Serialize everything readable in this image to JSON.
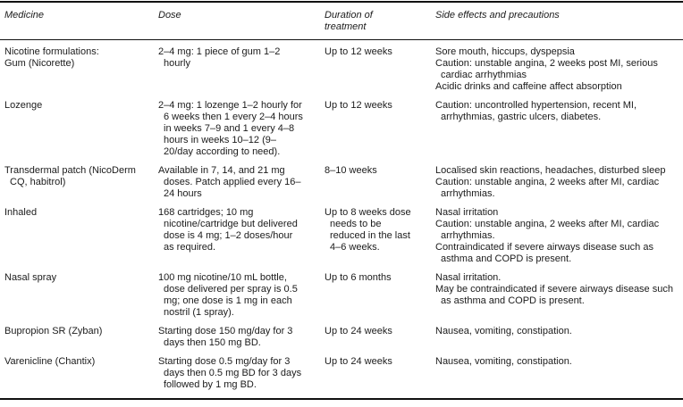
{
  "table": {
    "headers": [
      "Medicine",
      "Dose",
      "Duration of treatment",
      "Side effects and precautions"
    ],
    "rows": [
      {
        "medicine": [
          "Nicotine formulations:",
          "Gum (Nicorette)"
        ],
        "dose": [
          "2–4 mg: 1 piece of gum 1–2 hourly"
        ],
        "duration": [
          "Up to 12 weeks"
        ],
        "side_effects": [
          "Sore mouth, hiccups, dyspepsia",
          "Caution: unstable angina, 2 weeks post MI, serious cardiac arrhythmias",
          "Acidic drinks and caffeine affect absorption"
        ]
      },
      {
        "medicine": [
          "Lozenge"
        ],
        "dose": [
          "2–4 mg: 1 lozenge 1–2 hourly for 6 weeks then 1 every 2–4 hours in weeks 7–9 and 1 every 4–8 hours in weeks 10–12 (9–20/day according to need)."
        ],
        "duration": [
          "Up to 12 weeks"
        ],
        "side_effects": [
          "Caution: uncontrolled hypertension, recent MI, arrhythmias, gastric ulcers, diabetes."
        ]
      },
      {
        "medicine": [
          "Transdermal patch (NicoDerm CQ, habitrol)"
        ],
        "dose": [
          "Available in 7, 14, and 21 mg doses. Patch applied every 16–24 hours"
        ],
        "duration": [
          "8–10 weeks"
        ],
        "side_effects": [
          "Localised skin reactions, headaches, disturbed sleep",
          "Caution: unstable angina, 2 weeks after MI, cardiac arrhythmias."
        ]
      },
      {
        "medicine": [
          "Inhaled"
        ],
        "dose": [
          "168 cartridges; 10 mg nicotine/cartridge but delivered dose is 4 mg; 1–2 doses/hour as required."
        ],
        "duration": [
          "Up to 8 weeks dose needs to be reduced in the last 4–6 weeks."
        ],
        "side_effects": [
          "Nasal irritation",
          "Caution: unstable angina, 2 weeks after MI, cardiac arrhythmias.",
          "Contraindicated if severe airways disease such as asthma and COPD is present."
        ]
      },
      {
        "medicine": [
          "Nasal spray"
        ],
        "dose": [
          "100 mg nicotine/10 mL bottle, dose delivered per spray is 0.5 mg; one dose is 1 mg in each nostril (1 spray)."
        ],
        "duration": [
          "Up to 6 months"
        ],
        "side_effects": [
          "Nasal irritation.",
          "May be contraindicated if severe airways disease such as asthma and COPD is present."
        ]
      },
      {
        "medicine": [
          "Bupropion SR (Zyban)"
        ],
        "dose": [
          "Starting dose 150 mg/day for 3 days then 150 mg BD."
        ],
        "duration": [
          "Up to 24 weeks"
        ],
        "side_effects": [
          "Nausea, vomiting, constipation."
        ]
      },
      {
        "medicine": [
          "Varenicline (Chantix)"
        ],
        "dose": [
          "Starting dose 0.5 mg/day for 3 days then 0.5 mg BD for 3 days followed by 1 mg BD."
        ],
        "duration": [
          "Up to 24 weeks"
        ],
        "side_effects": [
          "Nausea, vomiting, constipation."
        ]
      }
    ]
  }
}
